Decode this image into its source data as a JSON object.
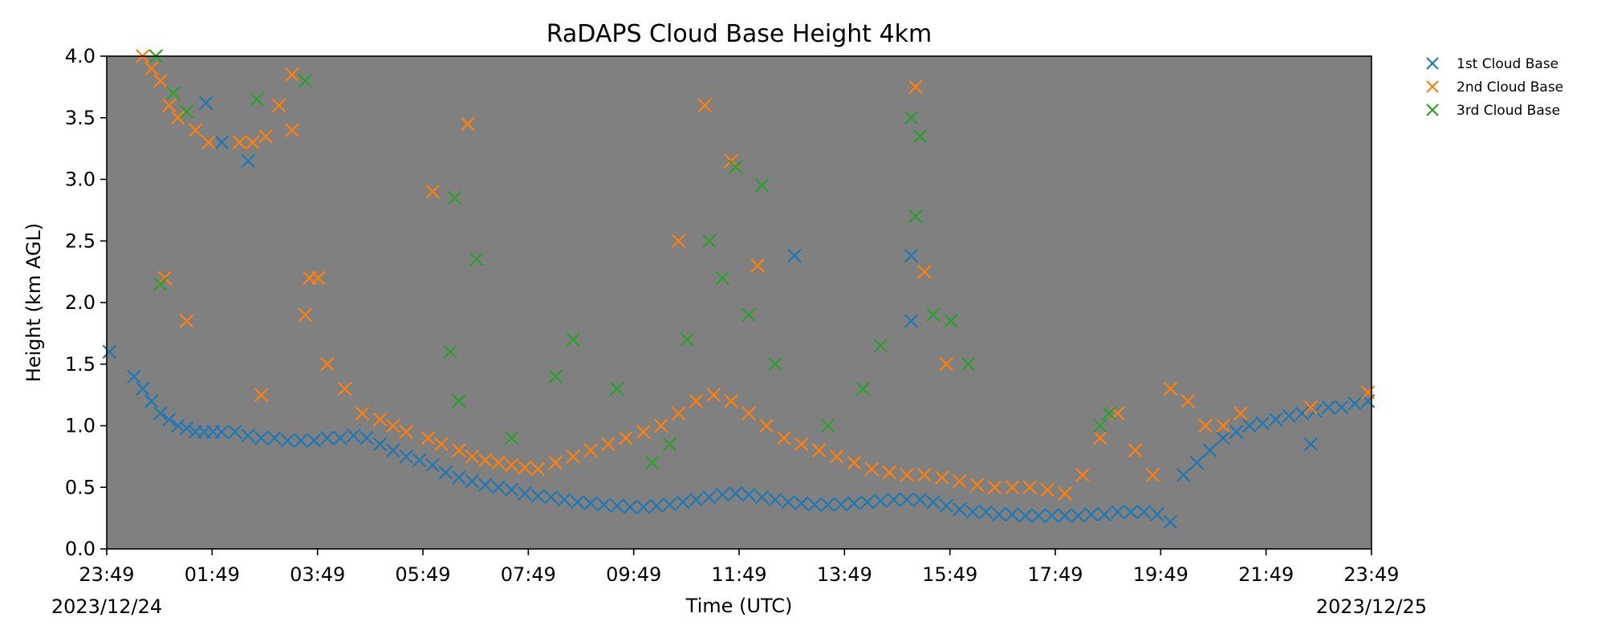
{
  "chart_data": {
    "type": "scatter",
    "title": "RaDAPS Cloud Base Height 4km",
    "xlabel": "Time (UTC)",
    "ylabel": "Height (km AGL)",
    "xlim": [
      "2023-12-24 23:49",
      "2023-12-25 23:49"
    ],
    "ylim": [
      0,
      4
    ],
    "y_ticks": [
      "0.0",
      "0.5",
      "1.0",
      "1.5",
      "2.0",
      "2.5",
      "3.0",
      "3.5",
      "4.0"
    ],
    "x_ticks": [
      "23:49",
      "01:49",
      "03:49",
      "05:49",
      "07:49",
      "09:49",
      "11:49",
      "13:49",
      "15:49",
      "17:49",
      "19:49",
      "21:49",
      "23:49"
    ],
    "x_dates": {
      "start": "2023/12/24",
      "end": "2023/12/25"
    },
    "plot_background": "#808080",
    "marker": "x",
    "grid": false,
    "legend_position": "outside-top-right",
    "series": [
      {
        "name": "1st Cloud Base",
        "color": "#1f77b4",
        "x": [
          "23:52",
          "00:20",
          "00:30",
          "00:40",
          "00:50",
          "01:00",
          "01:10",
          "01:20",
          "01:30",
          "01:40",
          "01:50",
          "02:00",
          "02:15",
          "02:30",
          "02:45",
          "03:00",
          "03:15",
          "03:30",
          "03:45",
          "04:00",
          "04:15",
          "04:30",
          "04:45",
          "05:00",
          "05:15",
          "05:30",
          "05:45",
          "06:00",
          "06:15",
          "06:30",
          "06:45",
          "07:00",
          "07:15",
          "07:30",
          "07:45",
          "08:00",
          "08:15",
          "08:30",
          "08:45",
          "09:00",
          "09:15",
          "09:30",
          "09:45",
          "10:00",
          "10:15",
          "10:30",
          "10:45",
          "11:00",
          "11:15",
          "11:30",
          "11:45",
          "12:00",
          "12:15",
          "12:30",
          "12:45",
          "13:00",
          "13:15",
          "13:30",
          "13:45",
          "14:00",
          "14:15",
          "14:30",
          "14:45",
          "15:00",
          "15:15",
          "15:30",
          "15:45",
          "16:00",
          "16:15",
          "16:30",
          "16:45",
          "17:00",
          "17:15",
          "17:30",
          "17:45",
          "18:00",
          "18:15",
          "18:30",
          "18:45",
          "19:00",
          "19:15",
          "19:30",
          "19:45",
          "20:00",
          "20:15",
          "20:30",
          "20:45",
          "21:00",
          "21:15",
          "21:30",
          "21:45",
          "22:00",
          "22:15",
          "22:30",
          "22:45",
          "23:00",
          "23:15",
          "23:30",
          "23:45",
          "01:42",
          "02:00",
          "02:30",
          "12:52",
          "15:05",
          "15:05",
          "22:40"
        ],
        "y": [
          1.6,
          1.4,
          1.3,
          1.2,
          1.1,
          1.05,
          1.0,
          0.98,
          0.95,
          0.95,
          0.95,
          0.95,
          0.95,
          0.92,
          0.9,
          0.9,
          0.88,
          0.88,
          0.88,
          0.9,
          0.9,
          0.92,
          0.9,
          0.85,
          0.8,
          0.75,
          0.72,
          0.68,
          0.62,
          0.58,
          0.55,
          0.52,
          0.5,
          0.48,
          0.45,
          0.43,
          0.42,
          0.4,
          0.38,
          0.37,
          0.36,
          0.35,
          0.34,
          0.34,
          0.35,
          0.36,
          0.38,
          0.4,
          0.42,
          0.44,
          0.45,
          0.44,
          0.42,
          0.4,
          0.38,
          0.37,
          0.36,
          0.36,
          0.36,
          0.37,
          0.38,
          0.39,
          0.4,
          0.4,
          0.4,
          0.38,
          0.35,
          0.32,
          0.3,
          0.3,
          0.28,
          0.28,
          0.27,
          0.27,
          0.27,
          0.27,
          0.27,
          0.28,
          0.28,
          0.3,
          0.3,
          0.3,
          0.28,
          0.22,
          0.6,
          0.7,
          0.8,
          0.9,
          0.95,
          1.0,
          1.02,
          1.05,
          1.08,
          1.1,
          1.12,
          1.15,
          1.15,
          1.18,
          1.2,
          3.62,
          3.3,
          3.15,
          2.38,
          2.38,
          1.85,
          0.85
        ]
      },
      {
        "name": "2nd Cloud Base",
        "color": "#ff7f0e",
        "x": [
          "00:30",
          "00:40",
          "00:50",
          "01:00",
          "01:10",
          "01:30",
          "01:45",
          "02:20",
          "02:35",
          "02:50",
          "03:05",
          "03:20",
          "03:35",
          "03:50",
          "04:00",
          "04:20",
          "04:40",
          "05:00",
          "05:15",
          "05:30",
          "05:55",
          "06:10",
          "06:30",
          "06:45",
          "07:00",
          "07:15",
          "07:30",
          "07:45",
          "08:00",
          "08:20",
          "08:40",
          "09:00",
          "09:20",
          "09:40",
          "10:00",
          "10:20",
          "10:40",
          "11:00",
          "11:20",
          "11:40",
          "12:00",
          "12:20",
          "12:40",
          "13:00",
          "13:20",
          "13:40",
          "14:00",
          "14:20",
          "14:40",
          "15:00",
          "15:20",
          "15:40",
          "16:00",
          "16:20",
          "16:40",
          "17:00",
          "17:20",
          "17:40",
          "18:00",
          "18:20",
          "18:40",
          "19:00",
          "19:20",
          "19:40",
          "20:00",
          "20:20",
          "20:40",
          "21:00",
          "21:20",
          "22:40",
          "23:45",
          "00:55",
          "01:20",
          "02:45",
          "03:20",
          "03:40",
          "04:00",
          "06:00",
          "06:40",
          "10:40",
          "11:10",
          "11:40",
          "12:10",
          "15:10",
          "15:20",
          "15:45"
        ],
        "y": [
          4.0,
          3.9,
          3.8,
          3.6,
          3.5,
          3.4,
          3.3,
          3.3,
          3.3,
          3.35,
          3.6,
          3.85,
          1.9,
          2.2,
          1.5,
          1.3,
          1.1,
          1.05,
          1.0,
          0.95,
          0.9,
          0.85,
          0.8,
          0.75,
          0.72,
          0.7,
          0.68,
          0.66,
          0.65,
          0.7,
          0.75,
          0.8,
          0.85,
          0.9,
          0.95,
          1.0,
          1.1,
          1.2,
          1.25,
          1.2,
          1.1,
          1.0,
          0.9,
          0.85,
          0.8,
          0.75,
          0.7,
          0.65,
          0.62,
          0.6,
          0.6,
          0.58,
          0.55,
          0.52,
          0.5,
          0.5,
          0.5,
          0.48,
          0.45,
          0.6,
          0.9,
          1.1,
          0.8,
          0.6,
          1.3,
          1.2,
          1.0,
          1.0,
          1.1,
          1.15,
          1.27,
          2.2,
          1.85,
          1.25,
          3.4,
          2.2,
          1.5,
          2.9,
          3.45,
          2.5,
          3.6,
          3.15,
          2.3,
          3.75,
          2.25,
          1.5
        ]
      },
      {
        "name": "3rd Cloud Base",
        "color": "#2ca02c",
        "x": [
          "00:45",
          "01:05",
          "01:20",
          "02:40",
          "03:35",
          "06:20",
          "06:30",
          "06:50",
          "07:30",
          "08:20",
          "08:40",
          "09:30",
          "10:10",
          "10:30",
          "10:50",
          "11:15",
          "11:30",
          "11:45",
          "12:00",
          "12:15",
          "12:30",
          "13:30",
          "14:10",
          "14:30",
          "15:05",
          "15:10",
          "15:15",
          "15:30",
          "15:50",
          "16:10",
          "18:40",
          "18:50",
          "00:50",
          "06:25"
        ],
        "y": [
          4.0,
          3.7,
          3.55,
          3.65,
          3.8,
          1.6,
          1.2,
          2.35,
          0.9,
          1.4,
          1.7,
          1.3,
          0.7,
          0.85,
          1.7,
          2.5,
          2.2,
          3.1,
          1.9,
          2.95,
          1.5,
          1.0,
          1.3,
          1.65,
          3.5,
          2.7,
          3.35,
          1.9,
          1.85,
          1.5,
          1.0,
          1.1,
          2.15,
          2.85
        ]
      }
    ]
  }
}
